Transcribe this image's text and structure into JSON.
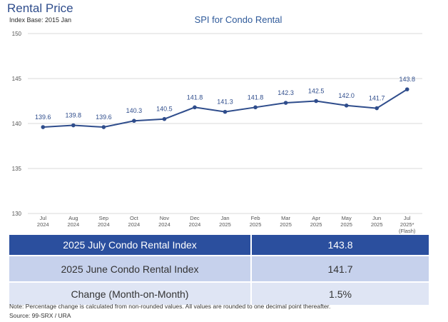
{
  "header": {
    "title": "Rental Price",
    "index_base": "Index Base: 2015 Jan"
  },
  "chart_data": {
    "type": "line",
    "title": "SPI for Condo Rental",
    "xlabel": "",
    "ylabel": "",
    "ylim": [
      130,
      150
    ],
    "yticks": [
      130,
      135,
      140,
      145,
      150
    ],
    "grid": true,
    "categories": [
      [
        "Jul",
        "2024"
      ],
      [
        "Aug",
        "2024"
      ],
      [
        "Sep",
        "2024"
      ],
      [
        "Oct",
        "2024"
      ],
      [
        "Nov",
        "2024"
      ],
      [
        "Dec",
        "2024"
      ],
      [
        "Jan",
        "2025"
      ],
      [
        "Feb",
        "2025"
      ],
      [
        "Mar",
        "2025"
      ],
      [
        "Apr",
        "2025"
      ],
      [
        "May",
        "2025"
      ],
      [
        "Jun",
        "2025"
      ],
      [
        "Jul",
        "2025*",
        "(Flash)"
      ]
    ],
    "series": [
      {
        "values": [
          139.6,
          139.8,
          139.6,
          140.3,
          140.5,
          141.8,
          141.3,
          141.8,
          142.3,
          142.5,
          142.0,
          141.7,
          143.8
        ]
      }
    ],
    "data_labels": [
      "139.6",
      "139.8",
      "139.6",
      "140.3",
      "140.5",
      "141.8",
      "141.3",
      "141.8",
      "142.3",
      "142.5",
      "142.0",
      "141.7",
      "143.8"
    ],
    "line_color": "#2f4d8c",
    "grid_color": "#d9d9d9"
  },
  "summary": {
    "rows": [
      {
        "label": "2025 July Condo Rental Index",
        "value": "143.8"
      },
      {
        "label": "2025 June Condo Rental Index",
        "value": "141.7"
      },
      {
        "label": "Change (Month-on-Month)",
        "value": "1.5%"
      }
    ]
  },
  "footer": {
    "note": "Note: Percentage change is calculated from non-rounded values.  All values are rounded to one decimal point thereafter.",
    "source": "Source: 99-SRX / URA"
  }
}
